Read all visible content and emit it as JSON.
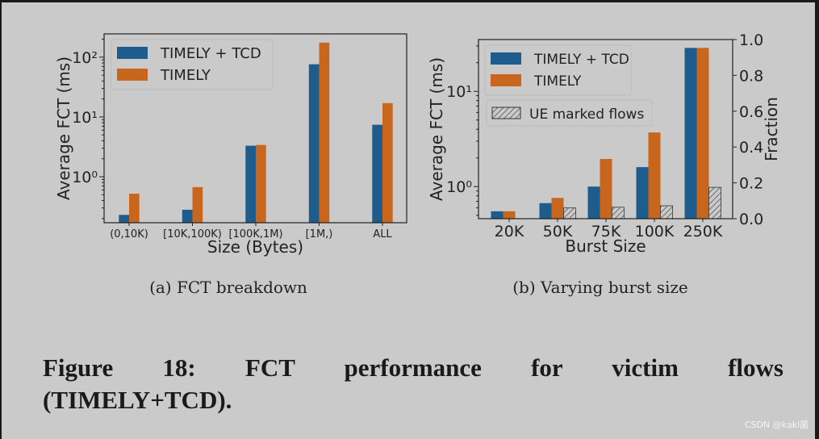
{
  "colors": {
    "timely_tcd": "#1d5c8c",
    "timely": "#c9661d",
    "hatch": "#444444",
    "background": "#cacaca"
  },
  "chart_data": [
    {
      "type": "bar",
      "subcaption": "(a)  FCT breakdown",
      "xlabel": "Size (Bytes)",
      "ylabel": "Average FCT (ms)",
      "yscale": "log",
      "ylim": [
        0.17,
        245
      ],
      "yticks": [
        {
          "value": 1,
          "label": "10⁰"
        },
        {
          "value": 10,
          "label": "10¹"
        },
        {
          "value": 100,
          "label": "10²"
        }
      ],
      "categories": [
        "(0,10K)",
        "[10K,100K)",
        "[100K,1M)",
        "[1M,)",
        "ALL"
      ],
      "legend_placement": "top-left",
      "series": [
        {
          "name": "TIMELY + TCD",
          "color": "#1d5c8c",
          "values": [
            0.23,
            0.28,
            3.3,
            76,
            7.4
          ]
        },
        {
          "name": "TIMELY",
          "color": "#c9661d",
          "values": [
            0.52,
            0.67,
            3.4,
            175,
            17
          ]
        }
      ]
    },
    {
      "type": "bar",
      "subcaption": "(b)  Varying burst size",
      "xlabel": "Burst Size",
      "ylabel": "Average FCT (ms)",
      "y2label": "Fraction",
      "yscale": "log",
      "ylim": [
        0.46,
        35
      ],
      "y2lim": [
        0,
        1
      ],
      "yticks": [
        {
          "value": 1,
          "label": "10⁰"
        },
        {
          "value": 10,
          "label": "10¹"
        }
      ],
      "y2ticks": [
        "0.0",
        "0.2",
        "0.4",
        "0.6",
        "0.8",
        "1.0"
      ],
      "categories": [
        "20K",
        "50K",
        "75K",
        "100K",
        "250K"
      ],
      "legend_placement": "top-left",
      "series": [
        {
          "name": "TIMELY + TCD",
          "color": "#1d5c8c",
          "values": [
            0.55,
            0.67,
            1.0,
            1.6,
            28.6
          ]
        },
        {
          "name": "TIMELY",
          "color": "#c9661d",
          "values": [
            0.55,
            0.76,
            1.95,
            3.7,
            28.6
          ]
        },
        {
          "name": "UE marked flows",
          "axis": "right",
          "pattern": "hatch",
          "values": [
            null,
            0.06,
            0.064,
            0.072,
            0.175
          ]
        }
      ]
    }
  ],
  "caption": {
    "line1": "Figure 18: FCT performance for victim flows",
    "line2": "(TIMELY+TCD)."
  },
  "watermark": "CSDN @kaki菌"
}
